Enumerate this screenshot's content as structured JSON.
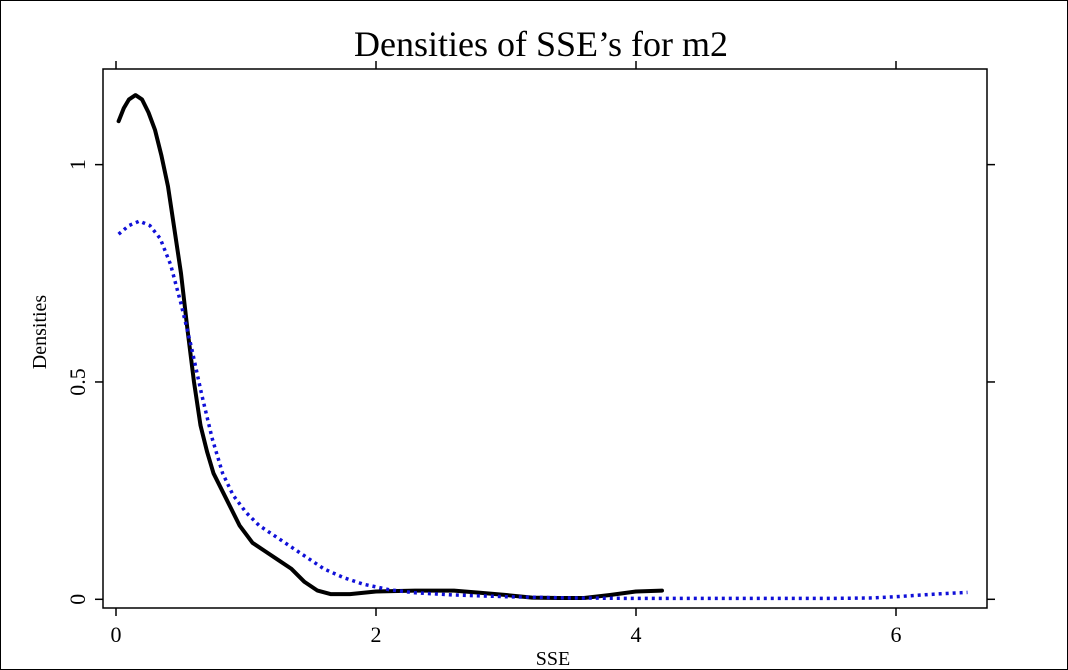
{
  "chart_data": {
    "type": "line",
    "title": "Densities of SSE’s for m2",
    "xlabel": "SSE",
    "ylabel": "Densities",
    "xlim": [
      -0.1,
      6.7
    ],
    "ylim": [
      -0.02,
      1.22
    ],
    "x_ticks": [
      0,
      2,
      4,
      6
    ],
    "x_tick_labels": [
      "0",
      "2",
      "4",
      "6"
    ],
    "y_ticks": [
      0,
      0.5,
      1
    ],
    "y_tick_labels": [
      "0",
      "0.5",
      "1"
    ],
    "grid": false,
    "legend": "none",
    "series": [
      {
        "color": "#000000",
        "style": "solid",
        "points": [
          [
            0.02,
            1.1
          ],
          [
            0.06,
            1.13
          ],
          [
            0.1,
            1.15
          ],
          [
            0.15,
            1.16
          ],
          [
            0.2,
            1.15
          ],
          [
            0.25,
            1.12
          ],
          [
            0.3,
            1.08
          ],
          [
            0.35,
            1.02
          ],
          [
            0.4,
            0.95
          ],
          [
            0.45,
            0.85
          ],
          [
            0.5,
            0.75
          ],
          [
            0.55,
            0.62
          ],
          [
            0.6,
            0.5
          ],
          [
            0.65,
            0.4
          ],
          [
            0.7,
            0.34
          ],
          [
            0.75,
            0.29
          ],
          [
            0.85,
            0.23
          ],
          [
            0.95,
            0.17
          ],
          [
            1.05,
            0.13
          ],
          [
            1.15,
            0.11
          ],
          [
            1.25,
            0.09
          ],
          [
            1.35,
            0.07
          ],
          [
            1.45,
            0.04
          ],
          [
            1.55,
            0.02
          ],
          [
            1.65,
            0.012
          ],
          [
            1.8,
            0.012
          ],
          [
            2.0,
            0.018
          ],
          [
            2.3,
            0.02
          ],
          [
            2.6,
            0.02
          ],
          [
            2.8,
            0.015
          ],
          [
            3.0,
            0.01
          ],
          [
            3.2,
            0.004
          ],
          [
            3.4,
            0.003
          ],
          [
            3.6,
            0.003
          ],
          [
            3.8,
            0.01
          ],
          [
            4.0,
            0.018
          ],
          [
            4.2,
            0.02
          ]
        ]
      },
      {
        "color": "#1010d8",
        "style": "dotted",
        "points": [
          [
            0.02,
            0.84
          ],
          [
            0.1,
            0.86
          ],
          [
            0.18,
            0.87
          ],
          [
            0.26,
            0.86
          ],
          [
            0.34,
            0.83
          ],
          [
            0.42,
            0.77
          ],
          [
            0.5,
            0.68
          ],
          [
            0.58,
            0.58
          ],
          [
            0.66,
            0.47
          ],
          [
            0.74,
            0.37
          ],
          [
            0.82,
            0.29
          ],
          [
            0.9,
            0.24
          ],
          [
            1.0,
            0.2
          ],
          [
            1.1,
            0.17
          ],
          [
            1.2,
            0.15
          ],
          [
            1.3,
            0.13
          ],
          [
            1.4,
            0.11
          ],
          [
            1.5,
            0.09
          ],
          [
            1.6,
            0.07
          ],
          [
            1.75,
            0.05
          ],
          [
            1.9,
            0.035
          ],
          [
            2.1,
            0.022
          ],
          [
            2.3,
            0.015
          ],
          [
            2.6,
            0.01
          ],
          [
            3.0,
            0.006
          ],
          [
            3.5,
            0.003
          ],
          [
            4.0,
            0.002
          ],
          [
            4.5,
            0.002
          ],
          [
            5.0,
            0.002
          ],
          [
            5.5,
            0.002
          ],
          [
            5.8,
            0.003
          ],
          [
            6.0,
            0.006
          ],
          [
            6.3,
            0.012
          ],
          [
            6.55,
            0.016
          ]
        ]
      }
    ]
  }
}
